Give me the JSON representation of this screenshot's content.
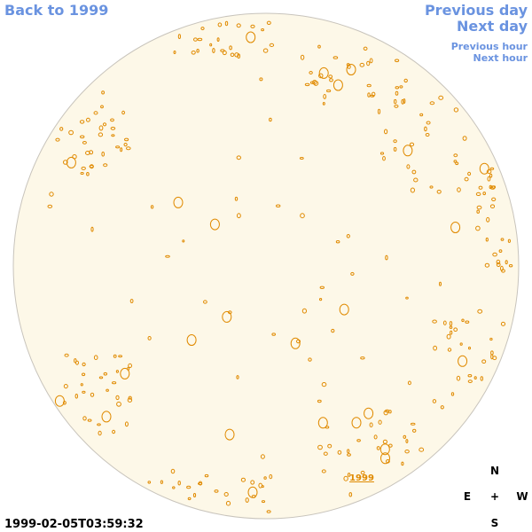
{
  "nav": {
    "back": "Back to 1999",
    "previous_day": "Previous day",
    "next_day": "Next day",
    "previous_hour": "Previous hour",
    "next_hour": "Next hour"
  },
  "disk_label": "1999",
  "compass": {
    "north": "N",
    "center": "+",
    "east": "E",
    "west": "W",
    "south": "S"
  },
  "timestamp": "1999-02-05T03:59:32"
}
